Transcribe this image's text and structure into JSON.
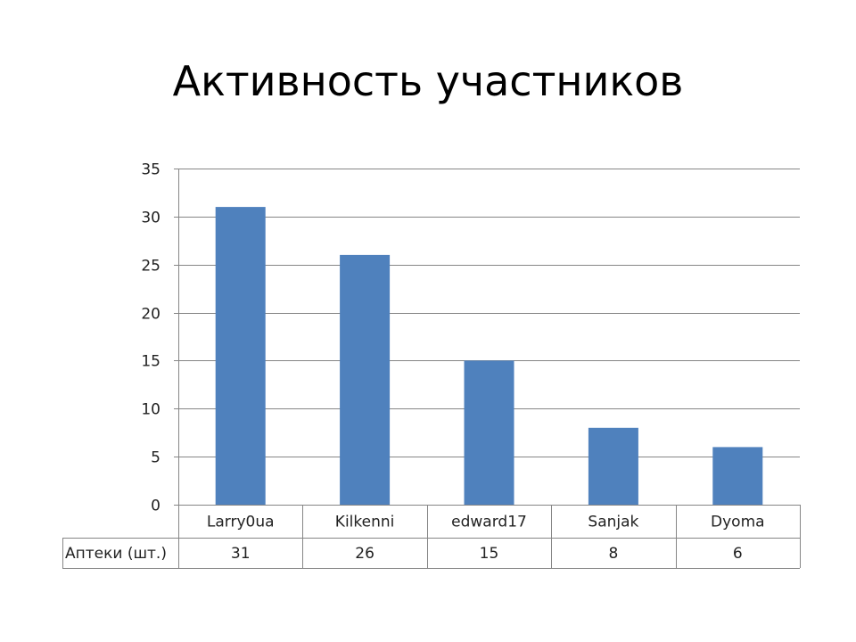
{
  "slide": {
    "title": "Активность участников"
  },
  "chart_data": {
    "type": "bar",
    "title": "",
    "xlabel": "",
    "ylabel": "",
    "categories": [
      "Larry0ua",
      "Kilkenni",
      "edward17",
      "Sanjak",
      "Dyoma"
    ],
    "series": [
      {
        "name": "Аптеки (шт.)",
        "values": [
          31,
          26,
          15,
          8,
          6
        ],
        "color": "#4F81BD"
      }
    ],
    "ylim": [
      0,
      35
    ],
    "yticks": [
      0,
      5,
      10,
      15,
      20,
      25,
      30,
      35
    ],
    "grid": true,
    "legend": "data-table"
  },
  "colors": {
    "bar": "#4F81BD",
    "grid": "#868686",
    "table_border": "#868686"
  }
}
